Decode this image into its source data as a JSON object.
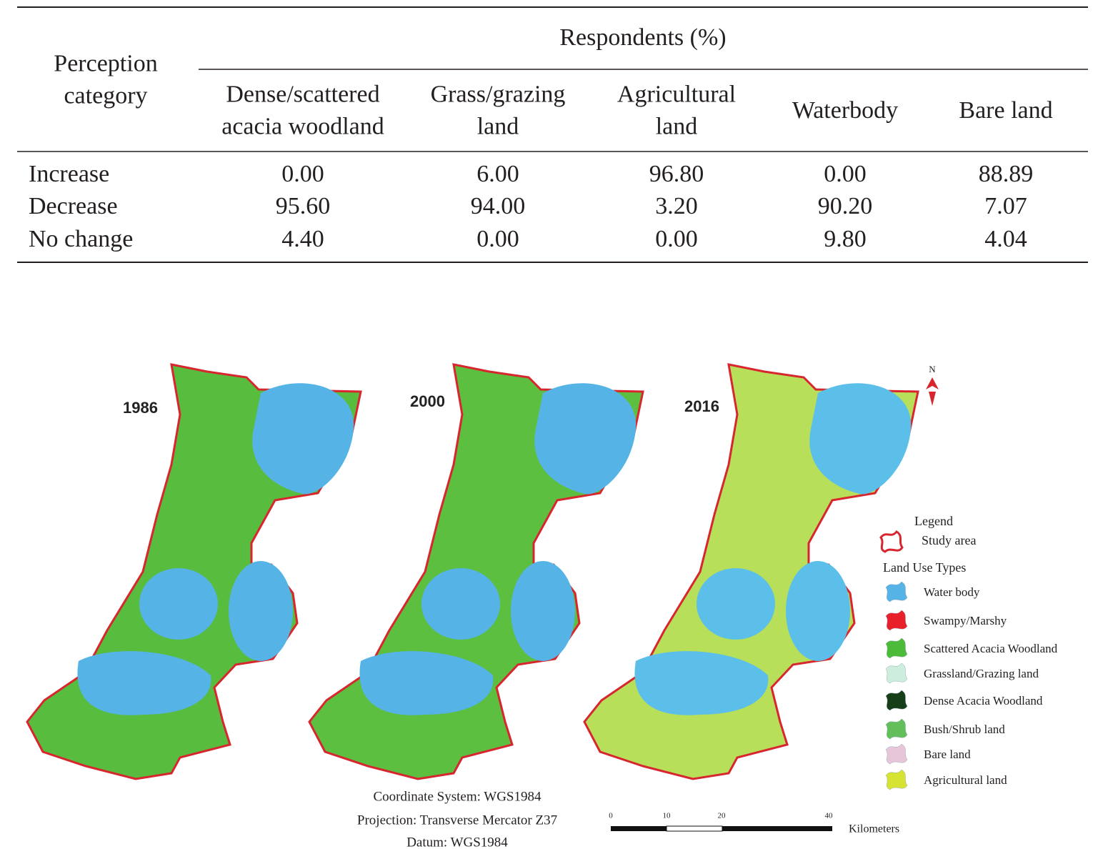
{
  "table": {
    "row_header": [
      "Perception",
      "category"
    ],
    "group_header": "Respondents (%)",
    "columns": [
      [
        "Dense/scattered",
        "acacia woodland"
      ],
      [
        "Grass/grazing",
        "land"
      ],
      [
        "Agricultural",
        "land"
      ],
      [
        "Waterbody"
      ],
      [
        "Bare land"
      ]
    ],
    "rows": [
      {
        "label": "Increase",
        "values": [
          "0.00",
          "6.00",
          "96.80",
          "0.00",
          "88.89"
        ]
      },
      {
        "label": "Decrease",
        "values": [
          "95.60",
          "94.00",
          "3.20",
          "90.20",
          "7.07"
        ]
      },
      {
        "label": "No change",
        "values": [
          "4.40",
          "0.00",
          "0.00",
          "9.80",
          "4.04"
        ]
      }
    ]
  },
  "map": {
    "panels": [
      "1986",
      "2000",
      "2016"
    ],
    "north": "N",
    "legend": {
      "title": "Legend",
      "study_area": {
        "label": "Study area",
        "color": "#d7262e"
      },
      "subtitle": "Land Use Types",
      "items": [
        {
          "label": "Water body",
          "color": "#55b3e6"
        },
        {
          "label": "Swampy/Marshy",
          "color": "#e8202a"
        },
        {
          "label": "Scattered Acacia Woodland",
          "color": "#4cbb3a"
        },
        {
          "label": "Grassland/Grazing land",
          "color": "#cdeedd"
        },
        {
          "label": "Dense Acacia Woodland",
          "color": "#173f17"
        },
        {
          "label": "Bush/Shrub land",
          "color": "#62bf5a"
        },
        {
          "label": "Bare land",
          "color": "#e6c6d8"
        },
        {
          "label": "Agricultural land",
          "color": "#d6e332"
        }
      ]
    },
    "notes": [
      "Coordinate System: WGS1984",
      "Projection: Transverse Mercator Z37",
      "Datum: WGS1984"
    ],
    "scale_bar": {
      "ticks": [
        "0",
        "10",
        "20",
        "40"
      ],
      "unit": "Kilometers"
    }
  }
}
